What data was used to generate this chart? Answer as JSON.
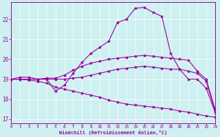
{
  "xlabel": "Windchill (Refroidissement éolien,°C)",
  "background_color": "#cef0f0",
  "line_color": "#990099",
  "grid_color": "#ffffff",
  "xlim": [
    0,
    23
  ],
  "ylim": [
    16.8,
    22.85
  ],
  "xticks": [
    0,
    1,
    2,
    3,
    4,
    5,
    6,
    7,
    8,
    9,
    10,
    11,
    12,
    13,
    14,
    15,
    16,
    17,
    18,
    19,
    20,
    21,
    22,
    23
  ],
  "yticks": [
    17,
    18,
    19,
    20,
    21,
    22
  ],
  "lines": [
    {
      "x": [
        0,
        1,
        2,
        3,
        4,
        5,
        6,
        7,
        8,
        9,
        10,
        11,
        12,
        13,
        14,
        15,
        16,
        17,
        18,
        19,
        20,
        21,
        22,
        23
      ],
      "y": [
        19.0,
        19.1,
        19.1,
        19.0,
        19.0,
        18.4,
        18.7,
        19.3,
        19.85,
        20.3,
        20.6,
        20.9,
        21.85,
        22.0,
        22.55,
        22.6,
        22.35,
        22.15,
        20.3,
        19.5,
        19.0,
        19.0,
        18.55,
        17.35
      ]
    },
    {
      "x": [
        0,
        1,
        2,
        3,
        4,
        5,
        6,
        7,
        8,
        9,
        10,
        11,
        12,
        13,
        14,
        15,
        16,
        17,
        18,
        19,
        20,
        21,
        22,
        23
      ],
      "y": [
        19.0,
        19.0,
        19.0,
        19.0,
        19.05,
        19.05,
        19.2,
        19.45,
        19.65,
        19.8,
        19.9,
        20.0,
        20.05,
        20.1,
        20.15,
        20.2,
        20.15,
        20.1,
        20.05,
        20.0,
        19.95,
        19.4,
        19.0,
        17.5
      ]
    },
    {
      "x": [
        0,
        1,
        2,
        3,
        4,
        5,
        6,
        7,
        8,
        9,
        10,
        11,
        12,
        13,
        14,
        15,
        16,
        17,
        18,
        19,
        20,
        21,
        22,
        23
      ],
      "y": [
        19.0,
        19.0,
        19.0,
        19.0,
        19.0,
        19.0,
        19.0,
        19.05,
        19.1,
        19.2,
        19.3,
        19.4,
        19.5,
        19.55,
        19.6,
        19.65,
        19.6,
        19.55,
        19.5,
        19.5,
        19.4,
        19.3,
        18.9,
        17.4
      ]
    },
    {
      "x": [
        0,
        1,
        2,
        3,
        4,
        5,
        6,
        7,
        8,
        9,
        10,
        11,
        12,
        13,
        14,
        15,
        16,
        17,
        18,
        19,
        20,
        21,
        22,
        23
      ],
      "y": [
        19.0,
        19.0,
        18.95,
        18.9,
        18.8,
        18.6,
        18.5,
        18.4,
        18.3,
        18.2,
        18.1,
        17.95,
        17.85,
        17.75,
        17.7,
        17.65,
        17.6,
        17.55,
        17.5,
        17.4,
        17.35,
        17.25,
        17.15,
        17.1
      ]
    }
  ]
}
